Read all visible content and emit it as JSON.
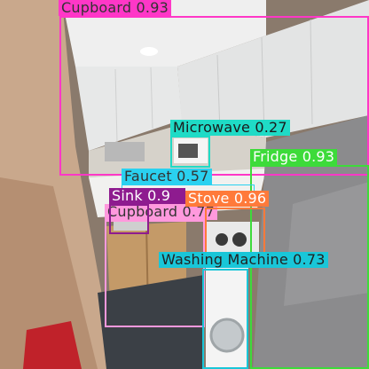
{
  "image": {
    "scene": "kitchen",
    "colors": {
      "wall": "#c7a68a",
      "cabinet": "#e6e7e7",
      "ceiling": "#ececec",
      "floor": "#3a3f45",
      "fridge": "#8a8a8c",
      "lower_cabinet": "#c49a68"
    }
  },
  "detections": [
    {
      "id": "cupboard-top",
      "label": "Cupboard 0.93",
      "color": "#ff37c7",
      "text_color": "#333333"
    },
    {
      "id": "microwave",
      "label": "Microwave 0.27",
      "color": "#1fdbc6",
      "text_color": "#1a1a1a"
    },
    {
      "id": "fridge",
      "label": "Fridge 0.93",
      "color": "#3ddb3a",
      "text_color": "#ffffff"
    },
    {
      "id": "faucet",
      "label": "Faucet 0.57",
      "color": "#2ad1f0",
      "text_color": "#333333"
    },
    {
      "id": "sink",
      "label": "Sink 0.9",
      "color": "#8e1b8f",
      "text_color": "#ffffff"
    },
    {
      "id": "stove",
      "label": "Stove 0.96",
      "color": "#ff7a3a",
      "text_color": "#ffffff"
    },
    {
      "id": "cupboard-bottom",
      "label": "Cupboard 0.77",
      "color": "#ff99dd",
      "text_color": "#333333"
    },
    {
      "id": "washing-machine",
      "label": "Washing Machine 0.73",
      "color": "#19c6d8",
      "text_color": "#222222"
    }
  ]
}
